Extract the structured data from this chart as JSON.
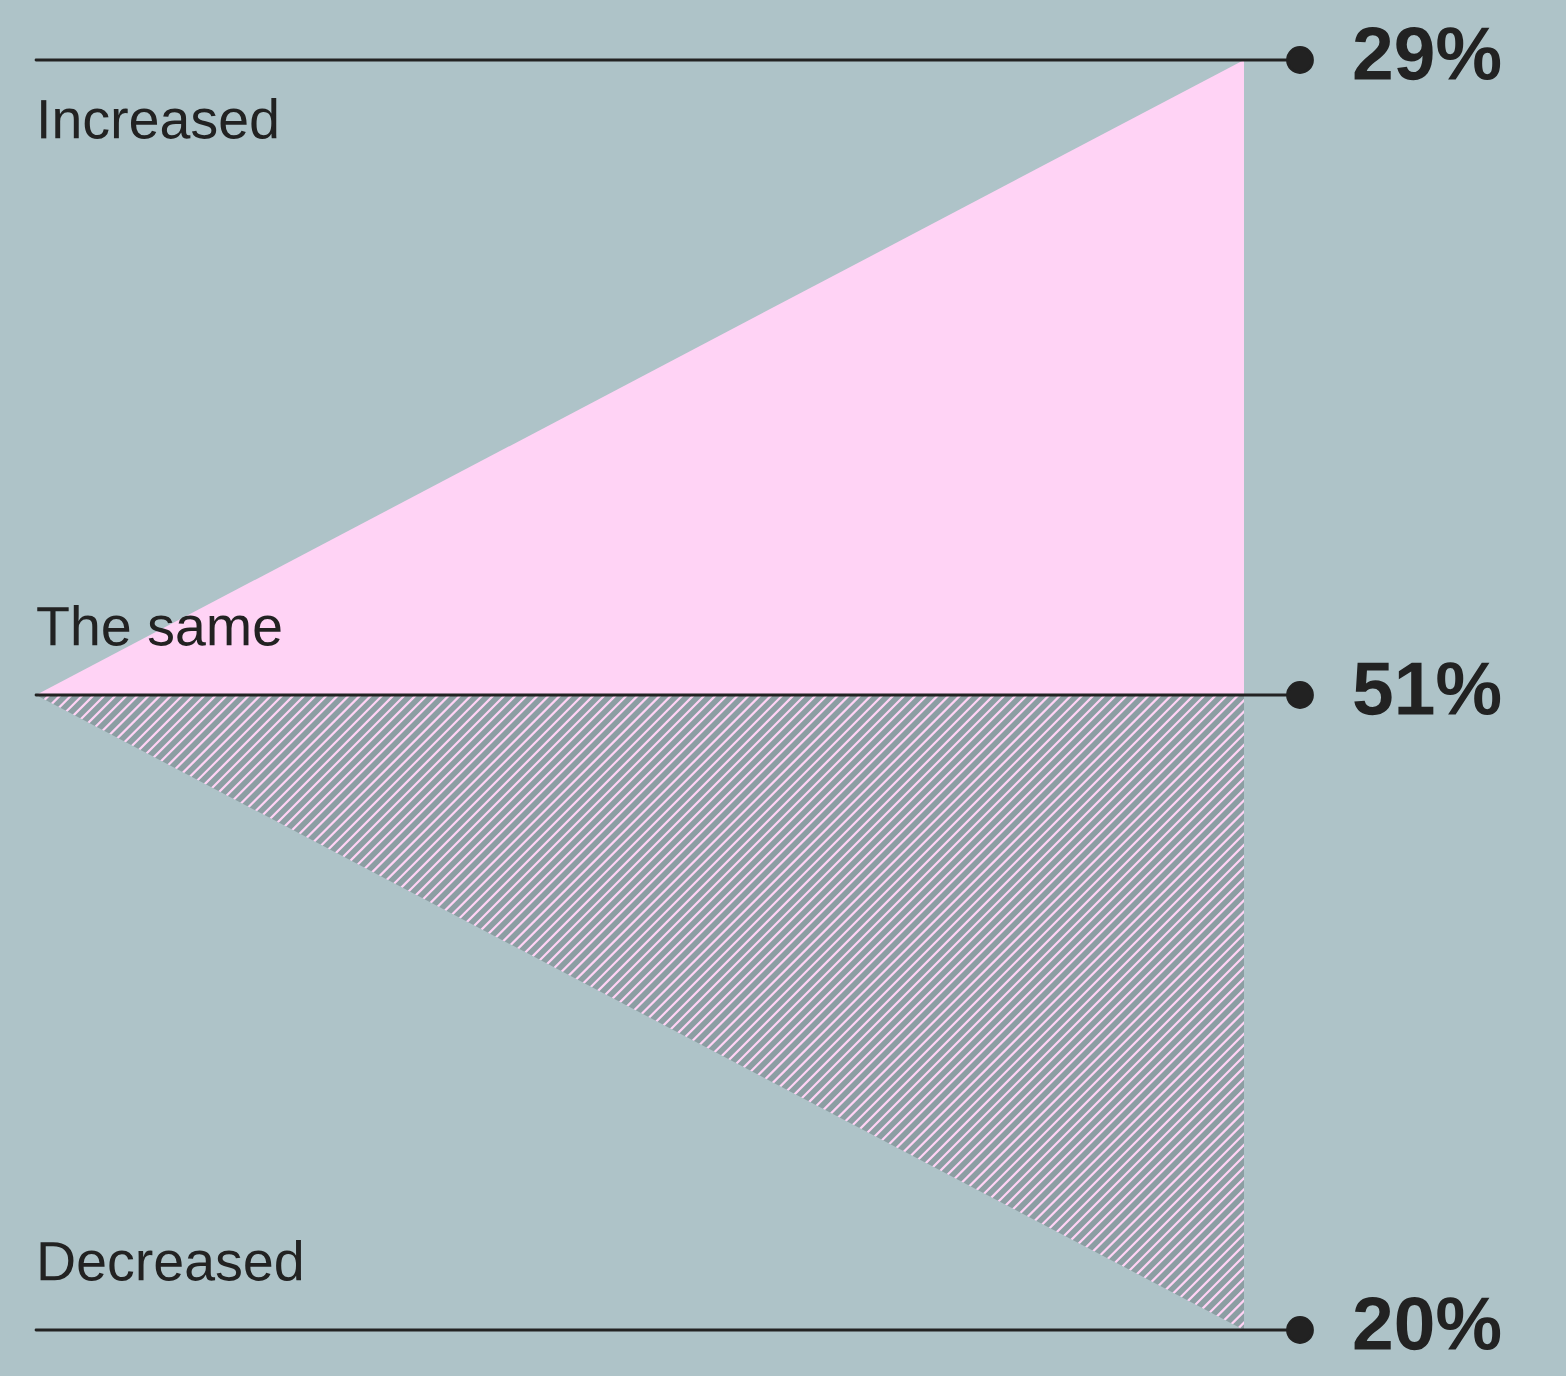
{
  "chart_data": {
    "type": "other",
    "categories": [
      "Increased",
      "The same",
      "Decreased"
    ],
    "values": [
      29,
      51,
      20
    ],
    "value_labels": [
      "29%",
      "51%",
      "20%"
    ],
    "colors": [
      "#ffd3f5",
      "#222222",
      "#8c9ea3"
    ]
  }
}
